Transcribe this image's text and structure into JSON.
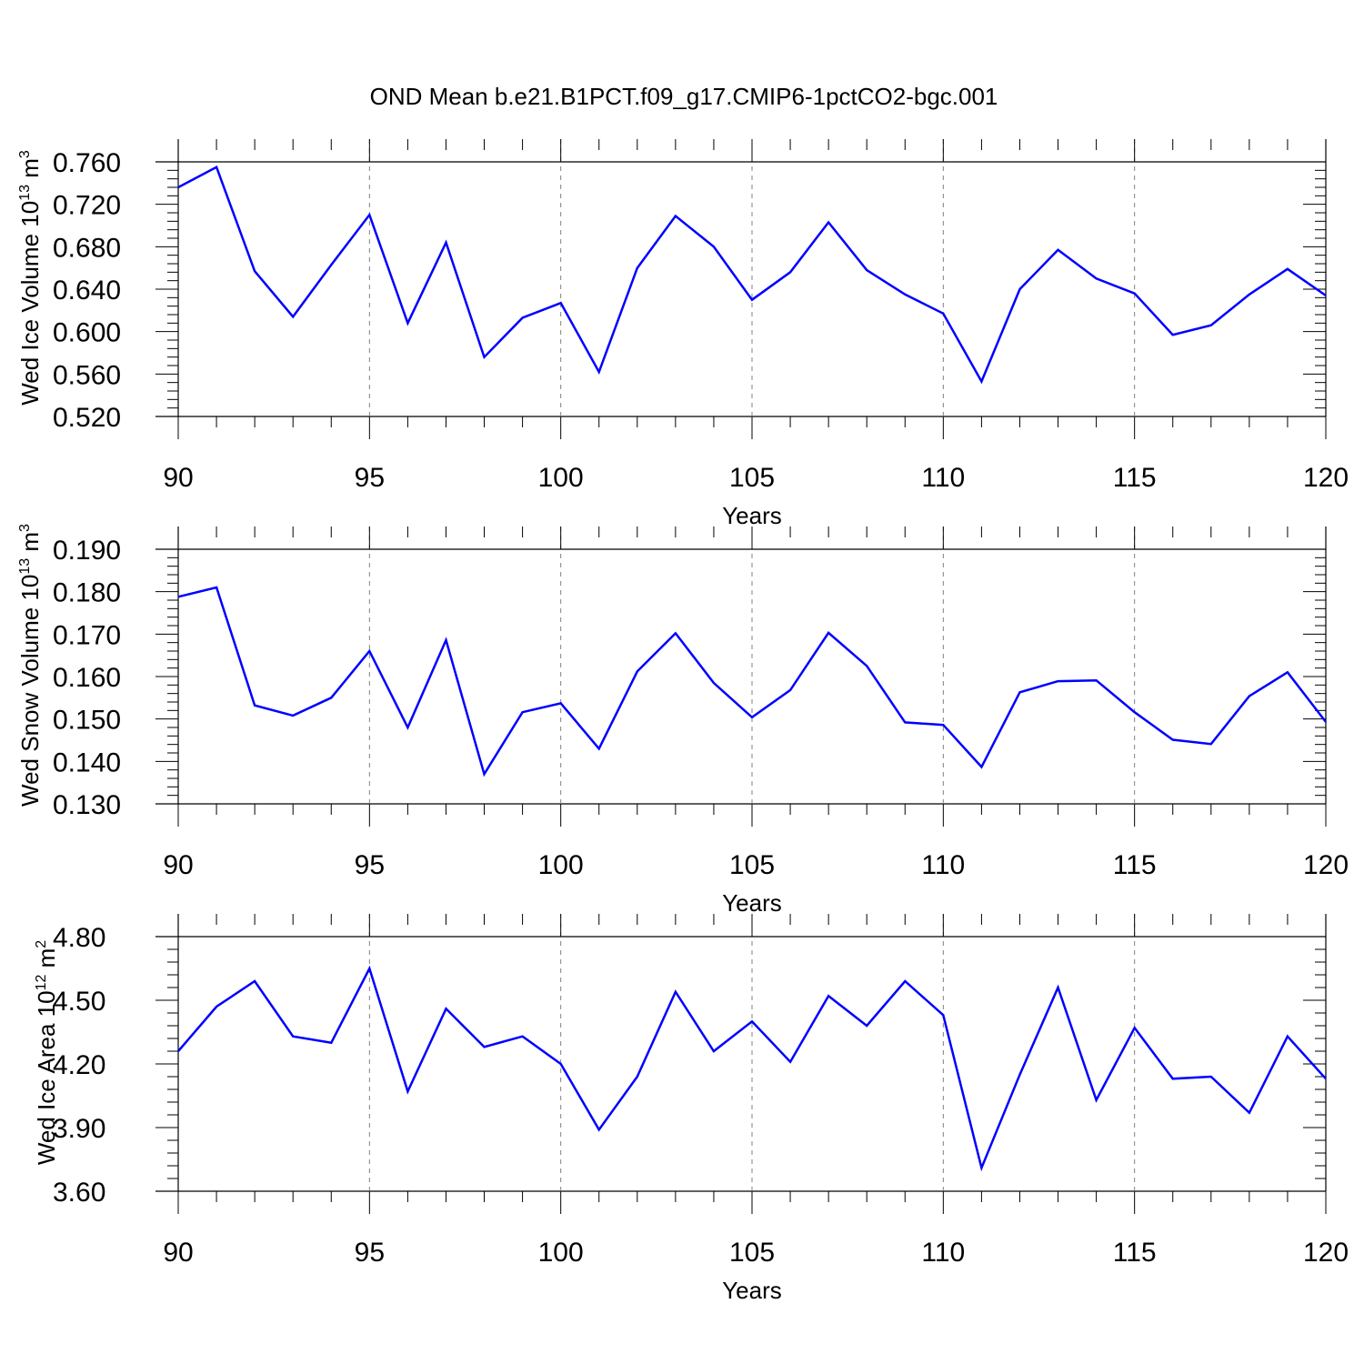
{
  "title": "OND Mean b.e21.B1PCT.f09_g17.CMIP6-1pctCO2-bgc.001",
  "colors": {
    "line": "#0000ff",
    "axis": "#000000",
    "grid": "#808080"
  },
  "chart_data": [
    {
      "type": "line",
      "xlabel": "Years",
      "ylabel": {
        "text": "Wed Ice Volume 10",
        "sup": "13",
        "unit": " m",
        "unit_sup": "3"
      },
      "xlim": [
        90,
        120
      ],
      "ylim": [
        0.52,
        0.76
      ],
      "xticks": [
        "90",
        "95",
        "100",
        "105",
        "110",
        "115",
        "120"
      ],
      "yticks": [
        "0.520",
        "0.560",
        "0.600",
        "0.640",
        "0.680",
        "0.720",
        "0.760"
      ],
      "grid": "vertical dashed at major x ticks",
      "x": [
        90,
        91,
        92,
        93,
        94,
        95,
        96,
        97,
        98,
        99,
        100,
        101,
        102,
        103,
        104,
        105,
        106,
        107,
        108,
        109,
        110,
        111,
        112,
        113,
        114,
        115,
        116,
        117,
        118,
        119,
        120
      ],
      "series": [
        {
          "values": [
            0.736,
            0.755,
            0.657,
            0.614,
            0.663,
            0.71,
            0.608,
            0.684,
            0.576,
            0.613,
            0.627,
            0.562,
            0.66,
            0.709,
            0.68,
            0.63,
            0.656,
            0.703,
            0.658,
            0.635,
            0.617,
            0.553,
            0.64,
            0.677,
            0.65,
            0.636,
            0.597,
            0.606,
            0.635,
            0.659,
            0.634
          ]
        }
      ]
    },
    {
      "type": "line",
      "xlabel": "Years",
      "ylabel": {
        "text": "Wed Snow Volume 10",
        "sup": "13",
        "unit": " m",
        "unit_sup": "3"
      },
      "xlim": [
        90,
        120
      ],
      "ylim": [
        0.13,
        0.19
      ],
      "xticks": [
        "90",
        "95",
        "100",
        "105",
        "110",
        "115",
        "120"
      ],
      "yticks": [
        "0.130",
        "0.140",
        "0.150",
        "0.160",
        "0.170",
        "0.180",
        "0.190"
      ],
      "grid": "vertical dashed at major x ticks",
      "x": [
        90,
        91,
        92,
        93,
        94,
        95,
        96,
        97,
        98,
        99,
        100,
        101,
        102,
        103,
        104,
        105,
        106,
        107,
        108,
        109,
        110,
        111,
        112,
        113,
        114,
        115,
        116,
        117,
        118,
        119,
        120
      ],
      "series": [
        {
          "values": [
            0.1788,
            0.181,
            0.1532,
            0.1508,
            0.155,
            0.166,
            0.148,
            0.1686,
            0.137,
            0.1516,
            0.1537,
            0.143,
            0.1612,
            0.1702,
            0.1585,
            0.1504,
            0.1568,
            0.1703,
            0.1625,
            0.1492,
            0.1486,
            0.1387,
            0.1563,
            0.1589,
            0.1591,
            0.1516,
            0.1451,
            0.1441,
            0.1554,
            0.161,
            0.1493
          ]
        }
      ]
    },
    {
      "type": "line",
      "xlabel": "Years",
      "ylabel": {
        "text": "Wed Ice Area 10",
        "sup": "12",
        "unit": " m",
        "unit_sup": "2"
      },
      "xlim": [
        90,
        120
      ],
      "ylim": [
        3.6,
        4.8
      ],
      "xticks": [
        "90",
        "95",
        "100",
        "105",
        "110",
        "115",
        "120"
      ],
      "yticks": [
        "3.60",
        "3.90",
        "4.20",
        "4.50",
        "4.80"
      ],
      "grid": "vertical dashed at major x ticks",
      "x": [
        90,
        91,
        92,
        93,
        94,
        95,
        96,
        97,
        98,
        99,
        100,
        101,
        102,
        103,
        104,
        105,
        106,
        107,
        108,
        109,
        110,
        111,
        112,
        113,
        114,
        115,
        116,
        117,
        118,
        119,
        120
      ],
      "series": [
        {
          "values": [
            4.26,
            4.47,
            4.59,
            4.33,
            4.3,
            4.65,
            4.07,
            4.46,
            4.28,
            4.33,
            4.2,
            3.89,
            4.14,
            4.54,
            4.26,
            4.4,
            4.21,
            4.52,
            4.38,
            4.59,
            4.43,
            3.71,
            4.15,
            4.56,
            4.03,
            4.37,
            4.13,
            4.14,
            3.97,
            4.33,
            4.13
          ]
        }
      ]
    }
  ]
}
